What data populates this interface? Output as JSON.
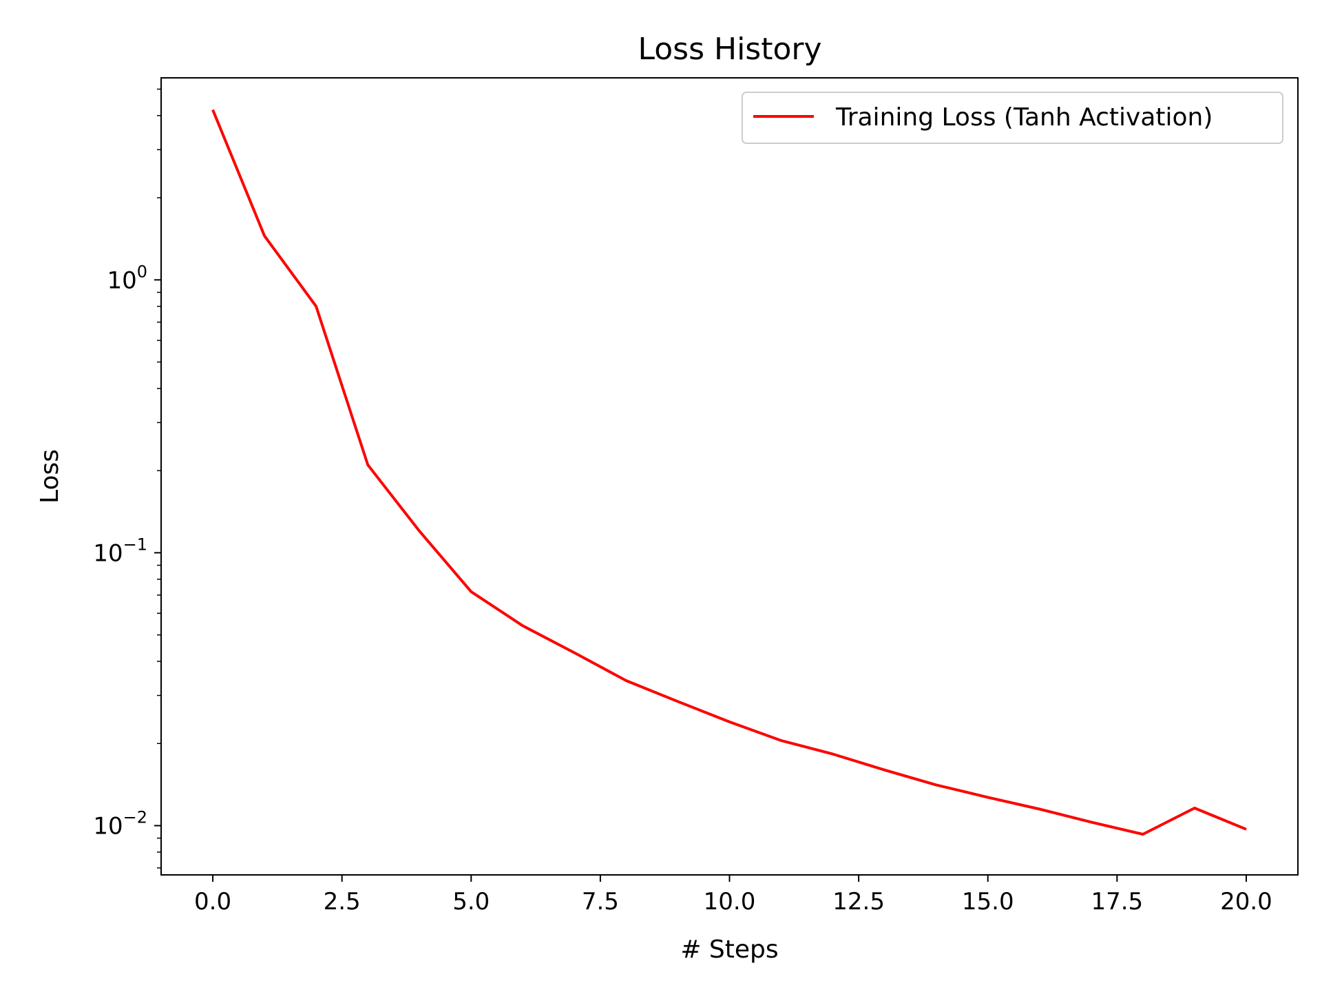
{
  "chart_data": {
    "type": "line",
    "title": "Loss History",
    "xlabel": "# Steps",
    "ylabel": "Loss",
    "xlim": [
      -1,
      21
    ],
    "ylim": [
      0.0066,
      5.5
    ],
    "yscale": "log",
    "x_ticks": [
      {
        "value": 0.0,
        "label": "0.0"
      },
      {
        "value": 2.5,
        "label": "2.5"
      },
      {
        "value": 5.0,
        "label": "5.0"
      },
      {
        "value": 7.5,
        "label": "7.5"
      },
      {
        "value": 10.0,
        "label": "10.0"
      },
      {
        "value": 12.5,
        "label": "12.5"
      },
      {
        "value": 15.0,
        "label": "15.0"
      },
      {
        "value": 17.5,
        "label": "17.5"
      },
      {
        "value": 20.0,
        "label": "20.0"
      }
    ],
    "y_ticks": [
      {
        "value": 1,
        "base": "10",
        "exp": "0"
      },
      {
        "value": 0.1,
        "base": "10",
        "exp": "−1"
      },
      {
        "value": 0.01,
        "base": "10",
        "exp": "−2"
      }
    ],
    "grid": false,
    "legend_position": "top-right",
    "series": [
      {
        "name": "Training Loss (Tanh Activation)",
        "color": "#ff0000",
        "x": [
          0,
          1,
          2,
          3,
          4,
          5,
          6,
          7,
          8,
          9,
          10,
          11,
          12,
          13,
          14,
          15,
          16,
          17,
          18,
          19,
          20
        ],
        "y": [
          4.2,
          1.45,
          0.8,
          0.21,
          0.12,
          0.072,
          0.054,
          0.043,
          0.034,
          0.0285,
          0.024,
          0.0205,
          0.0183,
          0.016,
          0.0141,
          0.0127,
          0.0115,
          0.0103,
          0.0093,
          0.0116,
          0.0097
        ]
      }
    ]
  }
}
